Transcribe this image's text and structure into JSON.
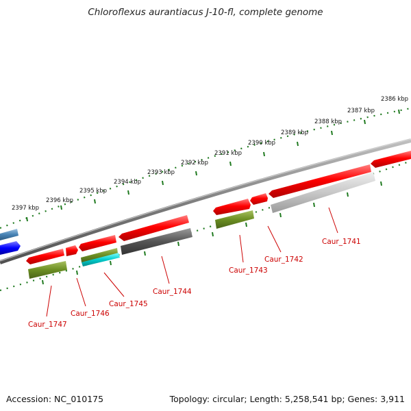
{
  "title": "Chloroflexus aurantiacus J-10-fl, complete genome",
  "accession": "Accession: NC_010175",
  "summary": "Topology: circular; Length: 5,258,541 bp; Genes: 3,911",
  "kbp_ticks": [
    "2397 kbp",
    "2396 kbp",
    "2395 kbp",
    "2394 kbp",
    "2393 kbp",
    "2392 kbp",
    "2391 kbp",
    "2390 kbp",
    "2389 kbp",
    "2388 kbp",
    "2387 kbp",
    "2386 kbp"
  ],
  "genes": [
    {
      "label": "Caur_1741"
    },
    {
      "label": "Caur_1742"
    },
    {
      "label": "Caur_1743"
    },
    {
      "label": "Caur_1744"
    },
    {
      "label": "Caur_1745"
    },
    {
      "label": "Caur_1746"
    },
    {
      "label": "Caur_1747"
    }
  ],
  "colors": {
    "cds": "#ff0000",
    "backbone": "#808080",
    "tick": "#1f7a1f",
    "label": "#cc0000",
    "olive": "#6b8e23",
    "cyan": "#00cccc",
    "dark_gray": "#555555",
    "light_gray": "#c8c8c8",
    "steel_blue": "#4682b4",
    "blue": "#0000ff"
  }
}
